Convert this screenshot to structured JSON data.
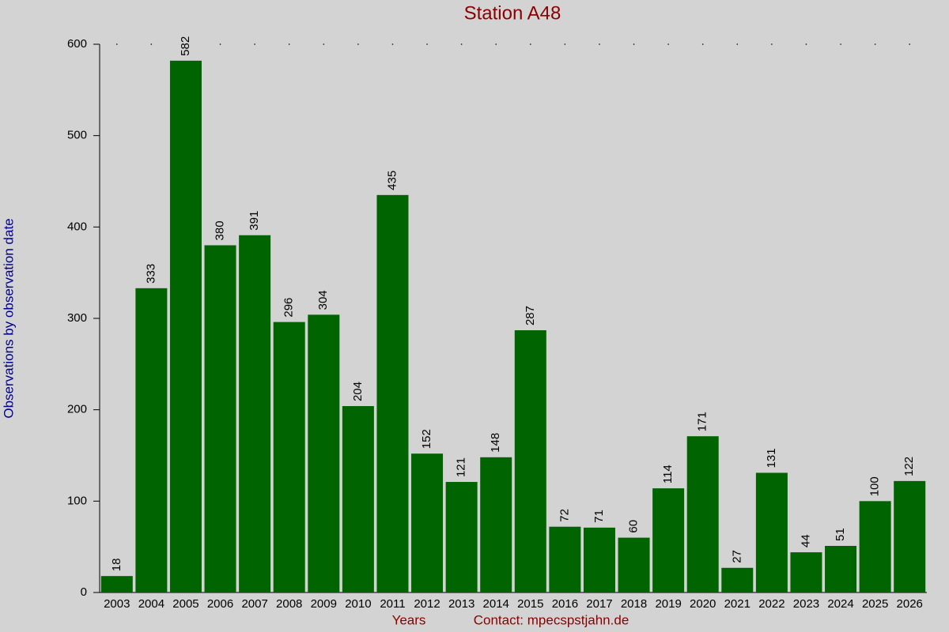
{
  "chart_data": {
    "type": "bar",
    "title": "Station A48",
    "x_label": "Years",
    "contact": "Contact: mpecspstjahn.de",
    "y_label": "Observations by observation date",
    "categories": [
      "2003",
      "2004",
      "2005",
      "2006",
      "2007",
      "2008",
      "2009",
      "2010",
      "2011",
      "2012",
      "2013",
      "2014",
      "2015",
      "2016",
      "2017",
      "2018",
      "2019",
      "2020",
      "2021",
      "2022",
      "2023",
      "2024",
      "2025",
      "2026"
    ],
    "values": [
      18,
      333,
      582,
      380,
      391,
      296,
      304,
      204,
      435,
      152,
      121,
      148,
      287,
      72,
      71,
      60,
      114,
      171,
      27,
      131,
      44,
      51,
      100,
      122
    ],
    "color": "#006400",
    "ylim": [
      0,
      600
    ],
    "yticks": [
      0,
      100,
      200,
      300,
      400,
      500,
      600
    ]
  }
}
